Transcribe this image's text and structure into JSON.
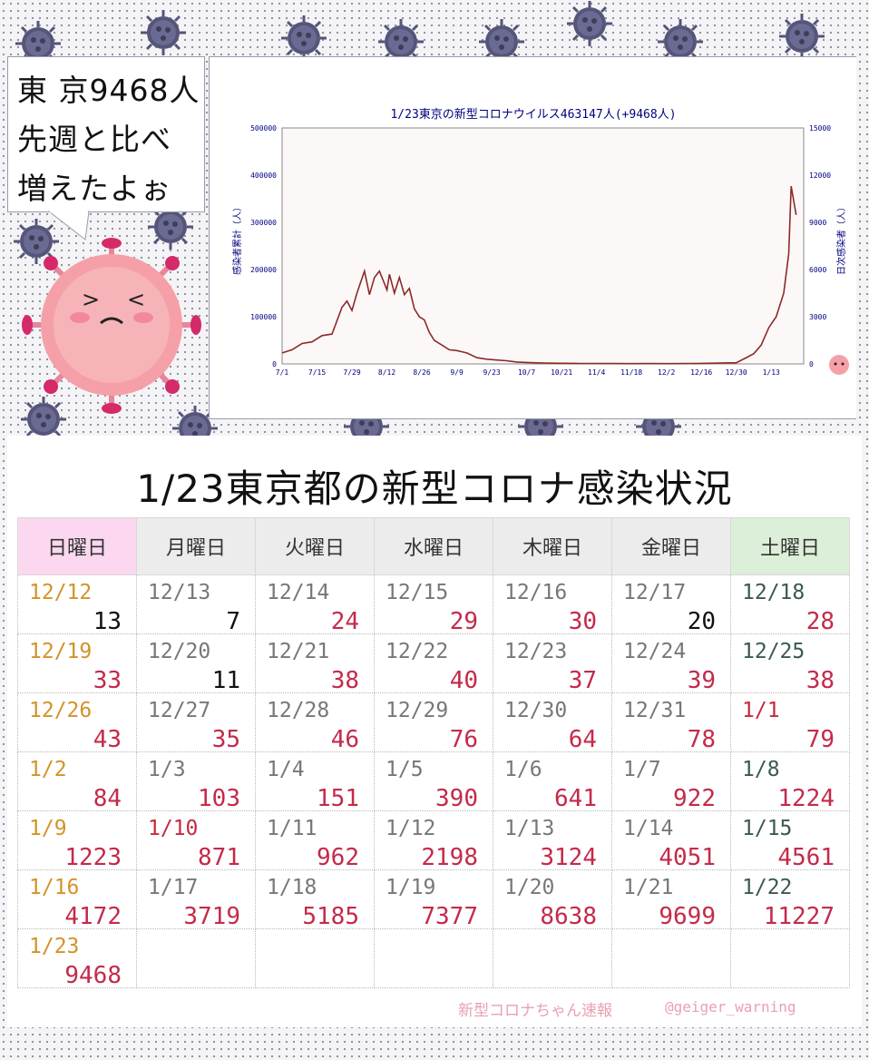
{
  "bubble": {
    "line1": "東 京9468人",
    "line2": "先週と比べ",
    "line3": "増えたよぉ"
  },
  "chart_data": {
    "type": "line",
    "title": "1/23東京の新型コロナウイルス463147人(+9468人)",
    "ylabel_left": "感染者累計（人）",
    "ylabel_right": "日次感染者（人）",
    "x_ticks": [
      "7/1",
      "7/15",
      "7/29",
      "8/12",
      "8/26",
      "9/9",
      "9/23",
      "10/7",
      "10/21",
      "11/4",
      "11/18",
      "12/2",
      "12/16",
      "12/30",
      "1/13"
    ],
    "y_left_ticks": [
      0,
      100000,
      200000,
      300000,
      400000,
      500000
    ],
    "y_right_ticks": [
      0,
      3000,
      6000,
      9000,
      12000,
      15000
    ],
    "y_right_range": [
      0,
      15000
    ],
    "series": [
      {
        "color": "#8b2a2a",
        "x": [
          "7/1",
          "7/5",
          "7/9",
          "7/13",
          "7/17",
          "7/21",
          "7/25",
          "7/27",
          "7/29",
          "7/31",
          "8/3",
          "8/5",
          "8/7",
          "8/9",
          "8/12",
          "8/13",
          "8/15",
          "8/17",
          "8/19",
          "8/21",
          "8/23",
          "8/25",
          "8/27",
          "8/29",
          "8/31",
          "9/3",
          "9/6",
          "9/9",
          "9/13",
          "9/17",
          "9/21",
          "9/25",
          "9/29",
          "10/3",
          "10/7",
          "10/14",
          "10/21",
          "10/28",
          "11/4",
          "11/11",
          "11/18",
          "11/25",
          "12/2",
          "12/9",
          "12/16",
          "12/23",
          "12/30",
          "1/3",
          "1/6",
          "1/9",
          "1/12",
          "1/15",
          "1/18",
          "1/20",
          "1/21",
          "1/23"
        ],
        "values": [
          700,
          900,
          1300,
          1400,
          1800,
          1900,
          3600,
          4000,
          3400,
          4500,
          5900,
          4400,
          5500,
          5900,
          4700,
          5700,
          4500,
          5500,
          4400,
          4800,
          3500,
          3000,
          2800,
          2000,
          1500,
          1200,
          900,
          850,
          700,
          400,
          300,
          250,
          200,
          120,
          90,
          60,
          40,
          30,
          30,
          25,
          20,
          25,
          20,
          25,
          35,
          55,
          75,
          400,
          650,
          1200,
          2300,
          3000,
          4500,
          7000,
          11300,
          9468
        ]
      }
    ]
  },
  "calendar": {
    "title": "1/23東京都の新型コロナ感染状況",
    "headers": [
      "日曜日",
      "月曜日",
      "火曜日",
      "水曜日",
      "木曜日",
      "金曜日",
      "土曜日"
    ],
    "rows": [
      [
        [
          "12/12",
          "13"
        ],
        [
          "12/13",
          "7"
        ],
        [
          "12/14",
          "24"
        ],
        [
          "12/15",
          "29"
        ],
        [
          "12/16",
          "30"
        ],
        [
          "12/17",
          "20"
        ],
        [
          "12/18",
          "28"
        ]
      ],
      [
        [
          "12/19",
          "33"
        ],
        [
          "12/20",
          "11"
        ],
        [
          "12/21",
          "38"
        ],
        [
          "12/22",
          "40"
        ],
        [
          "12/23",
          "37"
        ],
        [
          "12/24",
          "39"
        ],
        [
          "12/25",
          "38"
        ]
      ],
      [
        [
          "12/26",
          "43"
        ],
        [
          "12/27",
          "35"
        ],
        [
          "12/28",
          "46"
        ],
        [
          "12/29",
          "76"
        ],
        [
          "12/30",
          "64"
        ],
        [
          "12/31",
          "78"
        ],
        [
          "1/1",
          "79"
        ]
      ],
      [
        [
          "1/2",
          "84"
        ],
        [
          "1/3",
          "103"
        ],
        [
          "1/4",
          "151"
        ],
        [
          "1/5",
          "390"
        ],
        [
          "1/6",
          "641"
        ],
        [
          "1/7",
          "922"
        ],
        [
          "1/8",
          "1224"
        ]
      ],
      [
        [
          "1/9",
          "1223"
        ],
        [
          "1/10",
          "871"
        ],
        [
          "1/11",
          "962"
        ],
        [
          "1/12",
          "2198"
        ],
        [
          "1/13",
          "3124"
        ],
        [
          "1/14",
          "4051"
        ],
        [
          "1/15",
          "4561"
        ]
      ],
      [
        [
          "1/16",
          "4172"
        ],
        [
          "1/17",
          "3719"
        ],
        [
          "1/18",
          "5185"
        ],
        [
          "1/19",
          "7377"
        ],
        [
          "1/20",
          "8638"
        ],
        [
          "1/21",
          "9699"
        ],
        [
          "1/22",
          "11227"
        ]
      ],
      [
        [
          "1/23",
          "9468"
        ],
        [
          "",
          ""
        ],
        [
          "",
          ""
        ],
        [
          "",
          ""
        ],
        [
          "",
          ""
        ],
        [
          "",
          ""
        ],
        [
          "",
          ""
        ]
      ]
    ]
  },
  "credit": {
    "name": "新型コロナちゃん速報",
    "handle": "@geiger_warning"
  },
  "colors": {
    "sunday_header": "#fbd8ef",
    "saturday_header": "#dcefd8",
    "count_red": "#c42a4a",
    "sunday_date": "#d4922a"
  }
}
